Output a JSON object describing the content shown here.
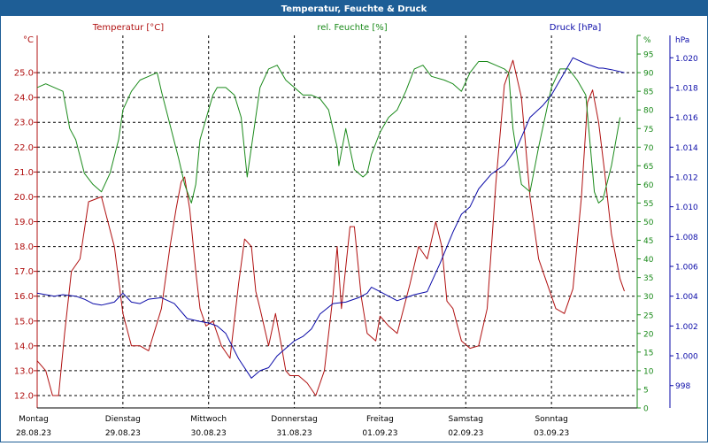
{
  "title": "Temperatur, Feuchte & Druck",
  "colors": {
    "title_bar": "#1e5e96",
    "title_text": "#ffffff",
    "temperature": "#b01010",
    "humidity": "#1a8a1a",
    "pressure": "#0a0aa8",
    "grid": "#000000",
    "frame": "#1e5e96"
  },
  "chart_data": {
    "type": "line",
    "grid": true,
    "x_days": [
      {
        "weekday": "Montag",
        "date": "28.08.23"
      },
      {
        "weekday": "Dienstag",
        "date": "29.08.23"
      },
      {
        "weekday": "Mittwoch",
        "date": "30.08.23"
      },
      {
        "weekday": "Donnerstag",
        "date": "31.08.23"
      },
      {
        "weekday": "Freitag",
        "date": "01.09.23"
      },
      {
        "weekday": "Samstag",
        "date": "02.09.23"
      },
      {
        "weekday": "Sonntag",
        "date": "03.09.23"
      }
    ],
    "axes": {
      "temperature": {
        "unit_label": "°C",
        "min": 11.5,
        "max": 26.5,
        "ticks": [
          "12.0",
          "13.0",
          "14.0",
          "15.0",
          "16.0",
          "17.0",
          "18.0",
          "19.0",
          "20.0",
          "21.0",
          "22.0",
          "23.0",
          "24.0",
          "25.0"
        ]
      },
      "humidity": {
        "unit_label": "%",
        "min": 0,
        "max": 100,
        "ticks": [
          "0",
          "5",
          "10",
          "15",
          "20",
          "25",
          "30",
          "35",
          "40",
          "45",
          "50",
          "55",
          "60",
          "65",
          "70",
          "75",
          "80",
          "85",
          "90",
          "95",
          "100"
        ]
      },
      "pressure": {
        "unit_label": "hPa",
        "min": 996.5,
        "max": 1021.5,
        "ticks": [
          "998",
          "1.000",
          "1.002",
          "1.004",
          "1.006",
          "1.008",
          "1.010",
          "1.012",
          "1.014",
          "1.016",
          "1.018",
          "1.020"
        ]
      }
    },
    "series": [
      {
        "name": "Temperatur [°C]",
        "axis": "temperature",
        "x": [
          0,
          0.1,
          0.18,
          0.25,
          0.32,
          0.4,
          0.5,
          0.6,
          0.75,
          0.9,
          1.0,
          1.1,
          1.2,
          1.3,
          1.45,
          1.55,
          1.62,
          1.68,
          1.72,
          1.78,
          1.85,
          1.9,
          1.97,
          2.05,
          2.15,
          2.25,
          2.35,
          2.42,
          2.5,
          2.55,
          2.6,
          2.7,
          2.78,
          2.85,
          2.9,
          2.95,
          3.05,
          3.15,
          3.25,
          3.35,
          3.45,
          3.5,
          3.55,
          3.65,
          3.7,
          3.78,
          3.85,
          3.95,
          4.0,
          4.05,
          4.1,
          4.2,
          4.35,
          4.45,
          4.55,
          4.65,
          4.72,
          4.78,
          4.85,
          4.95,
          5.05,
          5.15,
          5.25,
          5.35,
          5.45,
          5.55,
          5.65,
          5.75,
          5.85,
          5.95,
          6.05,
          6.15,
          6.25,
          6.35,
          6.42,
          6.48,
          6.55,
          6.62,
          6.7,
          6.8,
          6.85
        ],
        "values": [
          13.4,
          13.0,
          12.0,
          12.0,
          14.5,
          17.0,
          17.5,
          19.8,
          20.0,
          18.0,
          15.3,
          14.0,
          14.0,
          13.8,
          15.5,
          18.0,
          19.5,
          20.6,
          20.8,
          19.5,
          17.0,
          15.5,
          14.8,
          15.0,
          14.0,
          13.5,
          16.5,
          18.3,
          18.0,
          16.2,
          15.5,
          14.0,
          15.3,
          14.0,
          13.0,
          12.8,
          12.8,
          12.5,
          12.0,
          13.0,
          16.0,
          18.0,
          15.5,
          18.8,
          18.8,
          16.0,
          14.5,
          14.2,
          15.2,
          15.0,
          14.8,
          14.5,
          16.5,
          18.0,
          17.5,
          19.0,
          18.0,
          15.8,
          15.5,
          14.2,
          13.9,
          14.0,
          15.5,
          20.5,
          24.5,
          25.5,
          24.0,
          20.0,
          17.5,
          16.5,
          15.5,
          15.3,
          16.3,
          20.0,
          23.8,
          24.3,
          23.0,
          21.0,
          18.5,
          16.7,
          16.2
        ]
      },
      {
        "name": "rel. Feuchte [%]",
        "axis": "humidity",
        "x": [
          0,
          0.1,
          0.2,
          0.3,
          0.38,
          0.45,
          0.55,
          0.65,
          0.75,
          0.85,
          0.95,
          1.0,
          1.1,
          1.2,
          1.3,
          1.4,
          1.45,
          1.55,
          1.65,
          1.72,
          1.8,
          1.85,
          1.9,
          2.0,
          2.05,
          2.1,
          2.2,
          2.3,
          2.38,
          2.45,
          2.5,
          2.6,
          2.7,
          2.8,
          2.9,
          3.0,
          3.1,
          3.2,
          3.3,
          3.4,
          3.5,
          3.52,
          3.6,
          3.7,
          3.8,
          3.85,
          3.9,
          4.0,
          4.1,
          4.2,
          4.3,
          4.4,
          4.5,
          4.6,
          4.75,
          4.85,
          4.95,
          5.05,
          5.15,
          5.25,
          5.35,
          5.45,
          5.5,
          5.55,
          5.65,
          5.75,
          5.85,
          6.0,
          6.1,
          6.2,
          6.3,
          6.4,
          6.5,
          6.55,
          6.6,
          6.7,
          6.8
        ],
        "values": [
          86,
          87,
          86,
          85,
          75,
          72,
          63,
          60,
          58,
          63,
          72,
          80,
          85,
          88,
          89,
          90,
          85,
          76,
          67,
          60,
          55,
          60,
          72,
          80,
          84,
          86,
          86,
          84,
          78,
          62,
          70,
          86,
          91,
          92,
          88,
          86,
          84,
          84,
          83,
          80,
          70,
          65,
          75,
          64,
          62,
          63,
          68,
          74,
          78,
          80,
          85,
          91,
          92,
          89,
          88,
          87,
          85,
          90,
          93,
          93,
          92,
          91,
          90,
          75,
          60,
          58,
          70,
          86,
          91,
          91,
          88,
          84,
          58,
          55,
          56,
          65,
          78
        ]
      },
      {
        "name": "Druck [hPa]",
        "axis": "pressure",
        "x": [
          0,
          0.2,
          0.3,
          0.45,
          0.55,
          0.65,
          0.75,
          0.9,
          1.0,
          1.1,
          1.2,
          1.3,
          1.45,
          1.6,
          1.75,
          1.9,
          2.0,
          2.1,
          2.2,
          2.35,
          2.5,
          2.6,
          2.7,
          2.8,
          2.9,
          3.0,
          3.1,
          3.2,
          3.3,
          3.45,
          3.6,
          3.75,
          3.85,
          3.9,
          4.0,
          4.1,
          4.2,
          4.3,
          4.4,
          4.55,
          4.7,
          4.85,
          4.95,
          5.05,
          5.15,
          5.3,
          5.45,
          5.6,
          5.75,
          5.9,
          6.0,
          6.1,
          6.25,
          6.4,
          6.5,
          6.55,
          6.6,
          6.7,
          6.85
        ],
        "values": [
          1004.2,
          1004.0,
          1004.1,
          1004.0,
          1003.8,
          1003.5,
          1003.4,
          1003.6,
          1004.2,
          1003.6,
          1003.5,
          1003.8,
          1003.9,
          1003.5,
          1002.5,
          1002.3,
          1002.2,
          1002.0,
          1001.5,
          999.8,
          998.5,
          999.0,
          999.2,
          1000.0,
          1000.5,
          1001.0,
          1001.3,
          1001.8,
          1002.8,
          1003.5,
          1003.6,
          1003.9,
          1004.2,
          1004.6,
          1004.3,
          1004.0,
          1003.7,
          1003.9,
          1004.1,
          1004.3,
          1006.2,
          1008.3,
          1009.5,
          1010.0,
          1011.2,
          1012.2,
          1012.8,
          1014.0,
          1016.0,
          1016.8,
          1017.5,
          1018.5,
          1020.0,
          1019.6,
          1019.4,
          1019.3,
          1019.3,
          1019.2,
          1019.0
        ]
      }
    ]
  }
}
